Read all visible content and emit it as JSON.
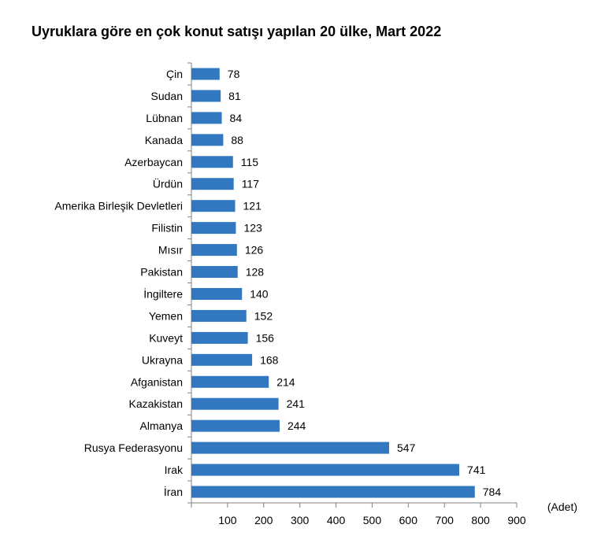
{
  "chart_data": {
    "type": "bar",
    "orientation": "horizontal",
    "title": "Uyruklara göre en çok konut satışı yapılan 20 ülke, Mart 2022",
    "unit_label": "(Adet)",
    "categories": [
      "Çin",
      "Sudan",
      "Lübnan",
      "Kanada",
      "Azerbaycan",
      "Ürdün",
      "Amerika Birleşik Devletleri",
      "Filistin",
      "Mısır",
      "Pakistan",
      "İngiltere",
      "Yemen",
      "Kuveyt",
      "Ukrayna",
      "Afganistan",
      "Kazakistan",
      "Almanya",
      "Rusya Federasyonu",
      "Irak",
      "İran"
    ],
    "values": [
      78,
      81,
      84,
      88,
      115,
      117,
      121,
      123,
      126,
      128,
      140,
      152,
      156,
      168,
      214,
      241,
      244,
      547,
      741,
      784
    ],
    "xlim": [
      0,
      900
    ],
    "xticks": [
      100,
      200,
      300,
      400,
      500,
      600,
      700,
      800,
      900
    ],
    "bar_color": "#3178c0",
    "grid": false
  }
}
